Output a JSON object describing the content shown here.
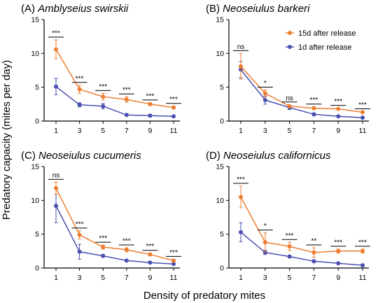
{
  "figure": {
    "ylabel": "Predatory capacity (mites per day)",
    "xlabel": "Density of predatory mites"
  },
  "legend": {
    "position": "top-right of panel B",
    "items": [
      {
        "label": "15d after release",
        "color": "#ED7D31"
      },
      {
        "label": "1d after release",
        "color": "#4A4FB0"
      }
    ]
  },
  "chart_data": [
    {
      "type": "line",
      "panel": "(A)",
      "species": "Amblyseius swirskii",
      "x": [
        1,
        3,
        5,
        7,
        9,
        11
      ],
      "ylim": [
        0,
        15
      ],
      "yticks": [
        0,
        5,
        10,
        15
      ],
      "series": [
        {
          "name": "15d after release",
          "color": "#ED7D31",
          "values": [
            10.6,
            4.7,
            3.6,
            3.2,
            2.5,
            2.0
          ],
          "errors": [
            1.4,
            0.6,
            0.5,
            0.4,
            0.2,
            0.2
          ]
        },
        {
          "name": "1d after release",
          "color": "#4A4FB0",
          "values": [
            5.1,
            2.4,
            2.2,
            0.9,
            0.8,
            0.7
          ],
          "errors": [
            1.2,
            0.3,
            0.4,
            0.1,
            0.2,
            0.1
          ]
        }
      ],
      "significance": [
        "***",
        "***",
        "***",
        "***",
        "***",
        "***"
      ]
    },
    {
      "type": "line",
      "panel": "(B)",
      "species": "Neoseiulus barkeri",
      "x": [
        1,
        3,
        5,
        7,
        9,
        11
      ],
      "ylim": [
        0,
        15
      ],
      "yticks": [
        0,
        5,
        10,
        15
      ],
      "series": [
        {
          "name": "15d after release",
          "color": "#ED7D31",
          "values": [
            8.1,
            4.1,
            2.2,
            1.9,
            1.8,
            1.3
          ],
          "errors": [
            1.9,
            0.5,
            0.2,
            0.2,
            0.1,
            0.1
          ]
        },
        {
          "name": "1d after release",
          "color": "#4A4FB0",
          "values": [
            7.6,
            3.1,
            2.0,
            1.0,
            0.7,
            0.5
          ],
          "errors": [
            1.2,
            0.6,
            0.3,
            0.2,
            0.1,
            0.1
          ]
        }
      ],
      "significance": [
        "ns",
        "*",
        "ns",
        "***",
        "***",
        "***"
      ]
    },
    {
      "type": "line",
      "panel": "(C)",
      "species": "Neoseiulus cucumeris",
      "x": [
        1,
        3,
        5,
        7,
        9,
        11
      ],
      "ylim": [
        0,
        15
      ],
      "yticks": [
        0,
        5,
        10,
        15
      ],
      "series": [
        {
          "name": "15d after release",
          "color": "#ED7D31",
          "values": [
            11.8,
            4.9,
            3.1,
            2.7,
            2.0,
            1.1
          ],
          "errors": [
            0.9,
            0.6,
            0.3,
            0.3,
            0.2,
            0.2
          ]
        },
        {
          "name": "1d after release",
          "color": "#4A4FB0",
          "values": [
            9.2,
            2.4,
            1.8,
            1.1,
            0.8,
            0.6
          ],
          "errors": [
            2.5,
            1.1,
            0.2,
            0.1,
            0.1,
            0.1
          ]
        }
      ],
      "significance": [
        "ns",
        "***",
        "***",
        "***",
        "***",
        "***"
      ]
    },
    {
      "type": "line",
      "panel": "(D)",
      "species": "Neoseiulus californicus",
      "x": [
        1,
        3,
        5,
        7,
        9,
        11
      ],
      "ylim": [
        0,
        15
      ],
      "yticks": [
        0,
        5,
        10,
        15
      ],
      "series": [
        {
          "name": "15d after release",
          "color": "#ED7D31",
          "values": [
            10.5,
            3.8,
            3.2,
            2.3,
            2.5,
            2.5
          ],
          "errors": [
            1.6,
            1.4,
            0.6,
            0.7,
            0.3,
            0.3
          ]
        },
        {
          "name": "1d after release",
          "color": "#4A4FB0",
          "values": [
            5.3,
            2.3,
            1.7,
            1.0,
            0.7,
            0.4
          ],
          "errors": [
            1.4,
            0.3,
            0.2,
            0.2,
            0.1,
            0.1
          ]
        }
      ],
      "significance": [
        "***",
        "*",
        "***",
        "**",
        "***",
        "***"
      ]
    }
  ]
}
